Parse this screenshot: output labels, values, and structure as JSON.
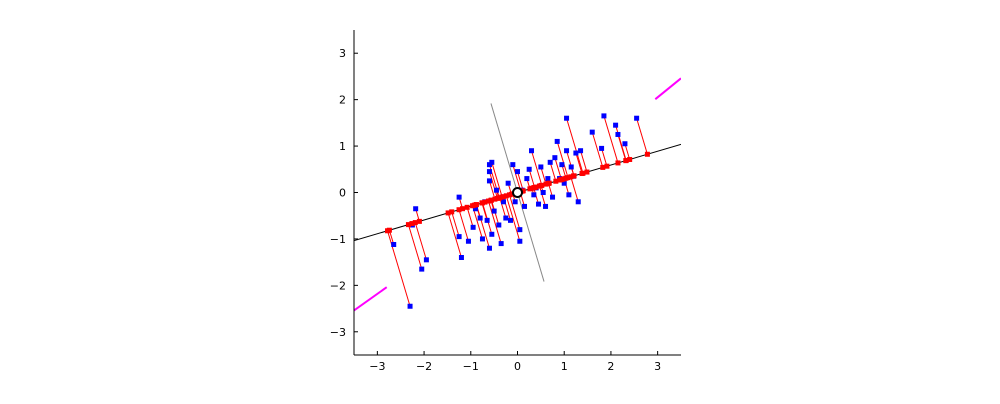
{
  "chart_data": {
    "type": "scatter",
    "title": "",
    "xlabel": "",
    "ylabel": "",
    "xlim": [
      -3.5,
      3.5
    ],
    "ylim": [
      -3.5,
      3.5
    ],
    "xticks": [
      -3,
      -2,
      -1,
      0,
      1,
      2,
      3
    ],
    "yticks": [
      -3,
      -2,
      -1,
      0,
      1,
      2,
      3
    ],
    "grid": false,
    "legend": "none",
    "colors": {
      "points": "#0000ff",
      "projections": "#ff0000",
      "projection_lines": "#ff0000",
      "principal_axis": "#000000",
      "secondary_axis": "#888888",
      "variance_segments": "#ff00ff",
      "mean_marker": "#ffffff"
    },
    "mean": [
      0.0,
      0.0
    ],
    "principal_axis_direction": [
      0.959,
      0.284
    ],
    "principal_axis_span": [
      -3.65,
      3.65
    ],
    "secondary_axis_span": [
      -2.0,
      2.0
    ],
    "variance_segments": [
      [
        [
          2.95,
          2.01
        ],
        [
          3.5,
          2.46
        ]
      ],
      [
        [
          -3.5,
          -2.54
        ],
        [
          -2.8,
          -2.04
        ]
      ]
    ],
    "points": [
      [
        -2.65,
        -1.12
      ],
      [
        -2.18,
        -0.35
      ],
      [
        -2.25,
        -0.7
      ],
      [
        -2.05,
        -1.65
      ],
      [
        -1.95,
        -1.45
      ],
      [
        -2.3,
        -2.45
      ],
      [
        -1.25,
        -0.95
      ],
      [
        -1.2,
        -1.4
      ],
      [
        -1.25,
        -0.1
      ],
      [
        -1.05,
        -1.05
      ],
      [
        -0.95,
        -0.75
      ],
      [
        -0.9,
        -0.35
      ],
      [
        -0.8,
        -0.55
      ],
      [
        -0.75,
        -1.0
      ],
      [
        -0.7,
        -0.2
      ],
      [
        -0.65,
        -0.6
      ],
      [
        -0.6,
        -1.2
      ],
      [
        -0.55,
        -0.9
      ],
      [
        -0.5,
        -0.4
      ],
      [
        -0.45,
        0.05
      ],
      [
        -0.6,
        0.45
      ],
      [
        -0.6,
        0.25
      ],
      [
        -0.6,
        0.6
      ],
      [
        -0.55,
        0.65
      ],
      [
        -0.4,
        -0.7
      ],
      [
        -0.35,
        -1.1
      ],
      [
        -0.3,
        -0.2
      ],
      [
        -0.25,
        -0.55
      ],
      [
        -0.2,
        0.2
      ],
      [
        -0.15,
        -0.6
      ],
      [
        -0.1,
        0.6
      ],
      [
        -0.05,
        -0.2
      ],
      [
        0.0,
        0.45
      ],
      [
        0.05,
        -0.8
      ],
      [
        0.05,
        -1.05
      ],
      [
        0.1,
        0.05
      ],
      [
        0.15,
        -0.3
      ],
      [
        0.2,
        0.3
      ],
      [
        0.25,
        0.5
      ],
      [
        0.3,
        0.9
      ],
      [
        0.35,
        -0.05
      ],
      [
        0.4,
        0.1
      ],
      [
        0.45,
        -0.25
      ],
      [
        0.5,
        0.55
      ],
      [
        0.55,
        0.0
      ],
      [
        0.6,
        -0.3
      ],
      [
        0.65,
        0.3
      ],
      [
        0.7,
        0.65
      ],
      [
        0.75,
        -0.1
      ],
      [
        0.8,
        0.75
      ],
      [
        0.85,
        1.1
      ],
      [
        0.9,
        0.3
      ],
      [
        0.95,
        0.6
      ],
      [
        1.0,
        0.2
      ],
      [
        1.05,
        0.9
      ],
      [
        1.05,
        1.6
      ],
      [
        1.1,
        -0.05
      ],
      [
        1.15,
        0.55
      ],
      [
        1.2,
        0.35
      ],
      [
        1.25,
        0.85
      ],
      [
        1.3,
        -0.2
      ],
      [
        1.35,
        0.9
      ],
      [
        1.6,
        1.3
      ],
      [
        1.8,
        0.95
      ],
      [
        1.85,
        1.65
      ],
      [
        2.1,
        1.45
      ],
      [
        2.15,
        1.25
      ],
      [
        2.3,
        1.05
      ],
      [
        2.55,
        1.6
      ]
    ]
  }
}
